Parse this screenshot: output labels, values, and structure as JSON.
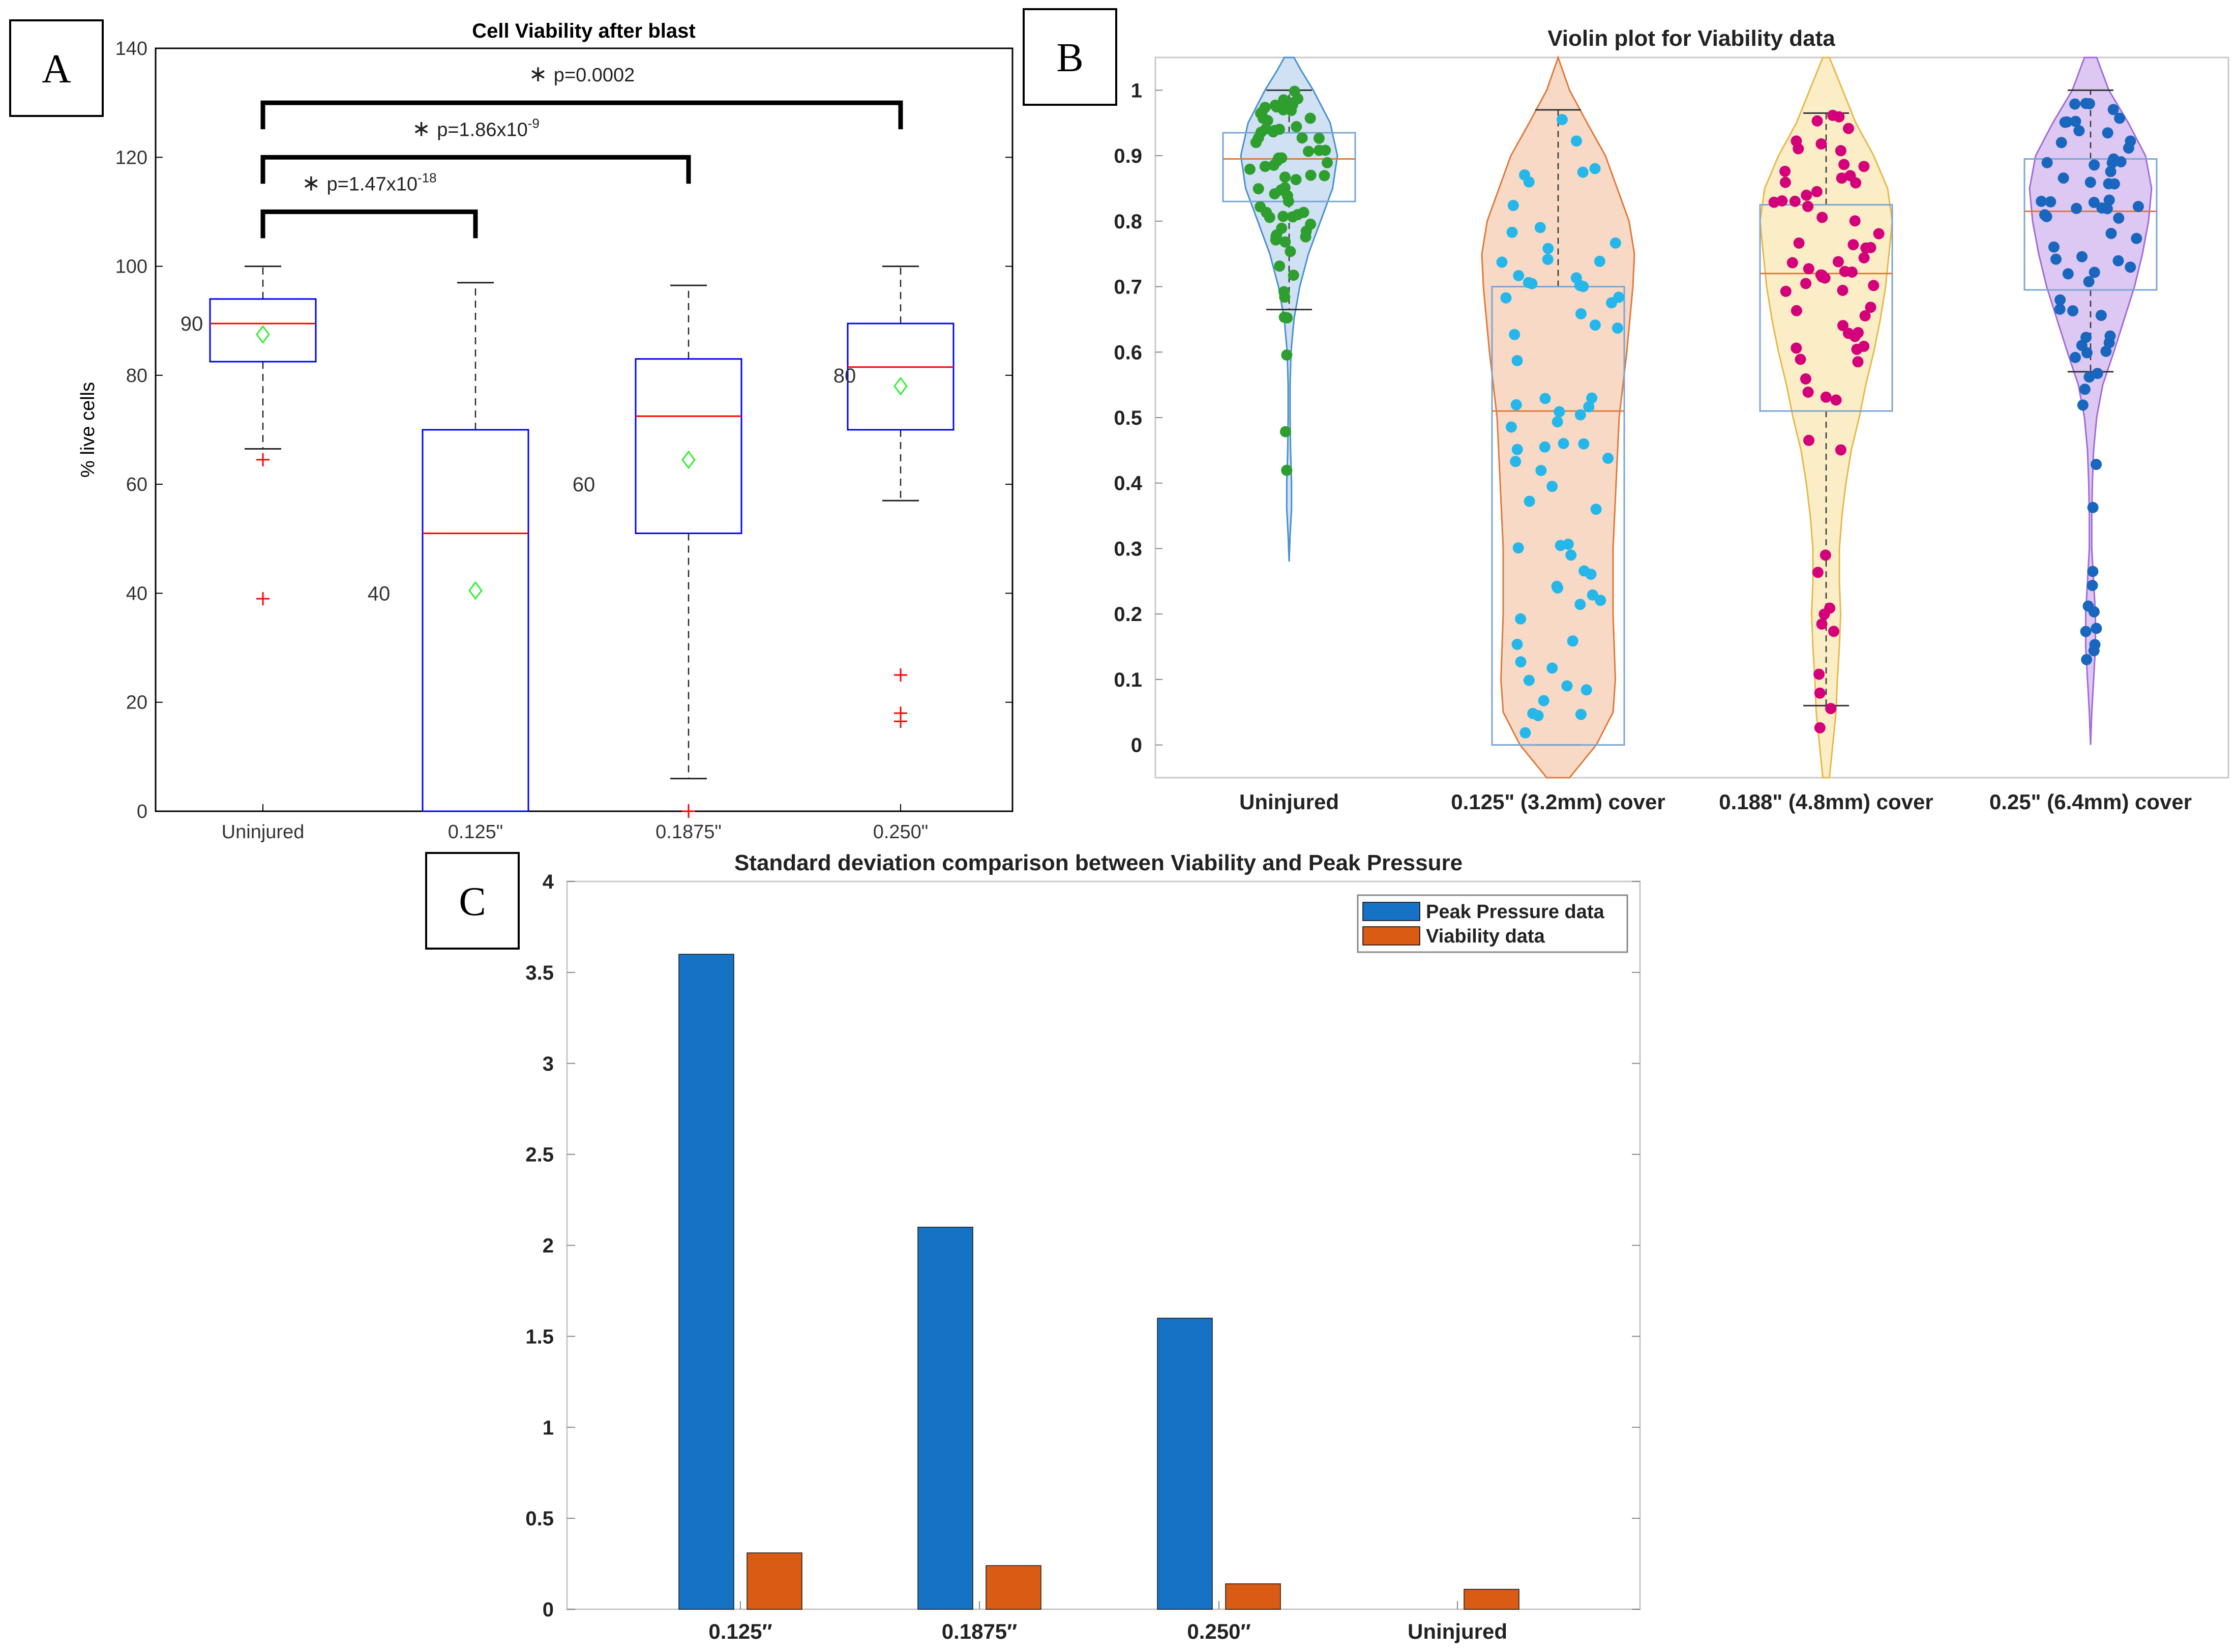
{
  "panel_labels": {
    "a": "A",
    "b": "B",
    "c": "C"
  },
  "colors": {
    "boxA": "#0000ff",
    "median": "#ff0000",
    "mean": "#33ee33",
    "outlier": "#ff0000",
    "green": "#2e9e2e",
    "cyan": "#25b7ea",
    "magenta": "#d4007a",
    "navy": "#1866be",
    "fillBlue": "#cfe1f2",
    "fillOrange": "#f7d9c6",
    "fillYellow": "#fbedc6",
    "fillPurple": "#dcc8f2",
    "barBlue": "#1672c4",
    "barOrange": "#d95b14"
  },
  "chart_data": [
    {
      "type": "box",
      "title": "Cell Viability after blast",
      "ylabel": "% live cells",
      "ylim": [
        0,
        140
      ],
      "yticks": [
        "0",
        "20",
        "40",
        "60",
        "80",
        "100",
        "120",
        "140"
      ],
      "categories": [
        "Uninjured",
        "0.125\"",
        "0.1875\"",
        "0.250\""
      ],
      "boxes": [
        {
          "whisker_low": 66.5,
          "q1": 82.5,
          "median": 89.5,
          "q3": 94,
          "whisker_high": 100,
          "mean": 87.5,
          "outliers": [
            64.5,
            39
          ],
          "label": "90"
        },
        {
          "whisker_low": 0,
          "q1": 0,
          "median": 51,
          "q3": 70,
          "whisker_high": 97,
          "mean": 40.5,
          "outliers": [],
          "label": "40"
        },
        {
          "whisker_low": 6,
          "q1": 51,
          "median": 72.5,
          "q3": 83,
          "whisker_high": 96.5,
          "mean": 64.5,
          "outliers": [
            0
          ],
          "label": "60"
        },
        {
          "whisker_low": 57,
          "q1": 70,
          "median": 81.5,
          "q3": 89.5,
          "whisker_high": 100,
          "mean": 78,
          "outliers": [
            25,
            18,
            16.5
          ],
          "label": "80"
        }
      ],
      "significance": [
        {
          "from": 0,
          "to": 1,
          "level": 110,
          "star": "∗",
          "text": "p=1.47x10",
          "sup": "-18"
        },
        {
          "from": 0,
          "to": 2,
          "level": 120,
          "star": "∗",
          "text": "p=1.86x10",
          "sup": "-9"
        },
        {
          "from": 0,
          "to": 3,
          "level": 130,
          "star": "∗",
          "text": "p=0.0002",
          "sup": ""
        }
      ]
    },
    {
      "type": "violin",
      "title": "Violin plot for Viability data",
      "ylim": [
        -0.05,
        1.05
      ],
      "yticks": [
        "0",
        "0.1",
        "0.2",
        "0.3",
        "0.4",
        "0.5",
        "0.6",
        "0.7",
        "0.8",
        "0.9",
        "1"
      ],
      "categories": [
        "Uninjured",
        "0.125\" (3.2mm) cover",
        "0.188\" (4.8mm) cover",
        "0.25\" (6.4mm) cover"
      ],
      "groups": [
        {
          "min": 0.28,
          "max": 1.05,
          "q1": 0.83,
          "median": 0.895,
          "q3": 0.935,
          "wl": 0.665,
          "wh": 1.0,
          "profile": [
            [
              0.28,
              0
            ],
            [
              0.32,
              0.02
            ],
            [
              0.36,
              0.05
            ],
            [
              0.4,
              0.05
            ],
            [
              0.45,
              0.03
            ],
            [
              0.5,
              0.02
            ],
            [
              0.55,
              0.02
            ],
            [
              0.6,
              0.04
            ],
            [
              0.65,
              0.1
            ],
            [
              0.7,
              0.22
            ],
            [
              0.75,
              0.4
            ],
            [
              0.8,
              0.65
            ],
            [
              0.85,
              0.9
            ],
            [
              0.9,
              1.0
            ],
            [
              0.95,
              0.85
            ],
            [
              1.0,
              0.5
            ],
            [
              1.03,
              0.25
            ],
            [
              1.05,
              0.1
            ]
          ]
        },
        {
          "min": -0.05,
          "max": 1.05,
          "q1": 0.0,
          "median": 0.51,
          "q3": 0.7,
          "wl": 0.0,
          "wh": 0.97,
          "profile": [
            [
              -0.05,
              0.15
            ],
            [
              0.0,
              0.5
            ],
            [
              0.05,
              0.72
            ],
            [
              0.1,
              0.75
            ],
            [
              0.2,
              0.72
            ],
            [
              0.3,
              0.72
            ],
            [
              0.4,
              0.76
            ],
            [
              0.5,
              0.8
            ],
            [
              0.6,
              0.9
            ],
            [
              0.7,
              0.98
            ],
            [
              0.75,
              1.0
            ],
            [
              0.8,
              0.93
            ],
            [
              0.9,
              0.62
            ],
            [
              0.95,
              0.38
            ],
            [
              1.0,
              0.15
            ],
            [
              1.05,
              0.0
            ]
          ]
        },
        {
          "min": -0.05,
          "max": 1.05,
          "q1": 0.51,
          "median": 0.72,
          "q3": 0.825,
          "wl": 0.06,
          "wh": 0.965,
          "profile": [
            [
              -0.05,
              0.05
            ],
            [
              0.0,
              0.1
            ],
            [
              0.05,
              0.15
            ],
            [
              0.1,
              0.17
            ],
            [
              0.15,
              0.2
            ],
            [
              0.2,
              0.22
            ],
            [
              0.25,
              0.2
            ],
            [
              0.3,
              0.2
            ],
            [
              0.35,
              0.24
            ],
            [
              0.4,
              0.3
            ],
            [
              0.45,
              0.38
            ],
            [
              0.5,
              0.5
            ],
            [
              0.55,
              0.6
            ],
            [
              0.6,
              0.72
            ],
            [
              0.65,
              0.82
            ],
            [
              0.7,
              0.9
            ],
            [
              0.75,
              0.95
            ],
            [
              0.8,
              1.0
            ],
            [
              0.85,
              0.93
            ],
            [
              0.9,
              0.72
            ],
            [
              0.95,
              0.45
            ],
            [
              1.0,
              0.25
            ],
            [
              1.05,
              0.05
            ]
          ]
        },
        {
          "min": 0.0,
          "max": 1.05,
          "q1": 0.695,
          "median": 0.815,
          "q3": 0.895,
          "wl": 0.57,
          "wh": 1.0,
          "profile": [
            [
              0.0,
              0.0
            ],
            [
              0.05,
              0.02
            ],
            [
              0.1,
              0.05
            ],
            [
              0.15,
              0.08
            ],
            [
              0.2,
              0.08
            ],
            [
              0.25,
              0.05
            ],
            [
              0.3,
              0.02
            ],
            [
              0.35,
              0.02
            ],
            [
              0.4,
              0.03
            ],
            [
              0.45,
              0.05
            ],
            [
              0.5,
              0.1
            ],
            [
              0.55,
              0.2
            ],
            [
              0.6,
              0.38
            ],
            [
              0.65,
              0.55
            ],
            [
              0.7,
              0.72
            ],
            [
              0.75,
              0.85
            ],
            [
              0.8,
              0.95
            ],
            [
              0.85,
              1.0
            ],
            [
              0.9,
              0.9
            ],
            [
              0.95,
              0.62
            ],
            [
              1.0,
              0.3
            ],
            [
              1.05,
              0.1
            ]
          ]
        }
      ]
    },
    {
      "type": "bar",
      "title": "Standard deviation comparison between Viability and Peak Pressure",
      "ylim": [
        0,
        4
      ],
      "yticks": [
        "0",
        "0.5",
        "1",
        "1.5",
        "2",
        "2.5",
        "3",
        "3.5",
        "4"
      ],
      "categories": [
        "0.125″",
        "0.1875″",
        "0.250″",
        "Uninjured"
      ],
      "series": [
        {
          "name": "Peak Pressure data",
          "values": [
            3.6,
            2.1,
            1.6,
            0
          ]
        },
        {
          "name": "Viability data",
          "values": [
            0.31,
            0.24,
            0.14,
            0.11
          ]
        }
      ],
      "legend": "top-right"
    }
  ]
}
